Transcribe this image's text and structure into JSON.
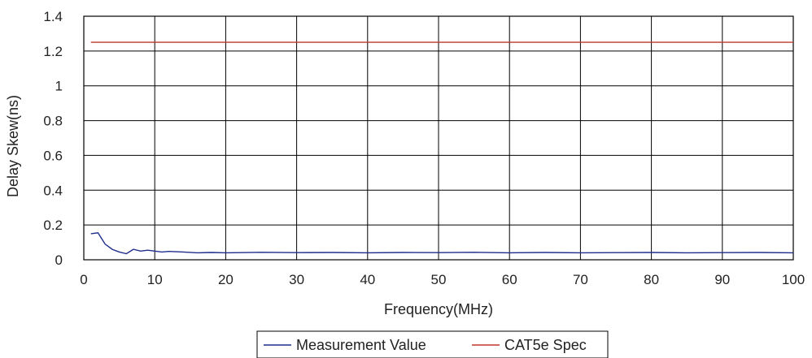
{
  "chart_data": {
    "type": "line",
    "xlabel": "Frequency(MHz)",
    "ylabel": "Delay Skew(ns)",
    "xlim": [
      0,
      100
    ],
    "ylim": [
      0,
      1.4
    ],
    "x_ticks": [
      0,
      10,
      20,
      30,
      40,
      50,
      60,
      70,
      80,
      90,
      100
    ],
    "y_ticks": [
      0,
      0.2,
      0.4,
      0.6,
      0.8,
      1,
      1.2,
      1.4
    ],
    "grid": true,
    "legend_position": "bottom",
    "series": [
      {
        "name": "Measurement Value",
        "color": "#1f2e8c",
        "x": [
          1,
          2,
          3,
          4,
          5,
          6,
          7,
          8,
          9,
          10,
          11,
          12,
          14,
          16,
          18,
          20,
          25,
          30,
          35,
          40,
          45,
          50,
          55,
          60,
          65,
          70,
          75,
          80,
          85,
          90,
          95,
          100
        ],
        "y": [
          0.15,
          0.155,
          0.09,
          0.06,
          0.045,
          0.035,
          0.06,
          0.05,
          0.055,
          0.05,
          0.045,
          0.048,
          0.045,
          0.04,
          0.042,
          0.04,
          0.043,
          0.041,
          0.042,
          0.04,
          0.042,
          0.041,
          0.043,
          0.04,
          0.042,
          0.04,
          0.041,
          0.042,
          0.04,
          0.041,
          0.042,
          0.04
        ]
      },
      {
        "name": "CAT5e Spec",
        "color": "#c0392b",
        "x": [
          1,
          100
        ],
        "y": [
          1.25,
          1.25
        ]
      }
    ]
  }
}
